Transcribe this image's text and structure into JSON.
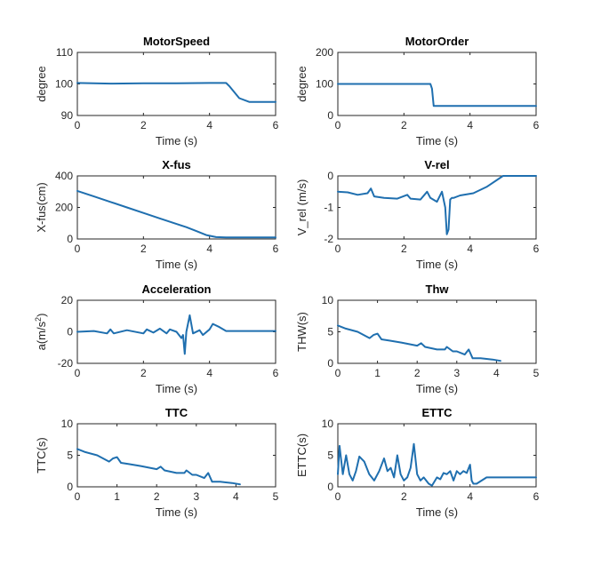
{
  "chart_data": [
    {
      "type": "line",
      "title": "MotorSpeed",
      "xlabel": "Time (s)",
      "ylabel": "degree",
      "xlim": [
        0,
        6
      ],
      "ylim": [
        90,
        110
      ],
      "xticks": [
        "0",
        "2",
        "4",
        "6"
      ],
      "yticks": [
        "90",
        "100",
        "110"
      ],
      "color": "#1f6faf",
      "series": [
        {
          "x": [
            0,
            0.5,
            1,
            2,
            3,
            4,
            4.5,
            4.6,
            4.9,
            5.2,
            6
          ],
          "y": [
            100.3,
            100.2,
            100.1,
            100.2,
            100.2,
            100.3,
            100.3,
            99.3,
            95.5,
            94.3,
            94.3
          ]
        }
      ]
    },
    {
      "type": "line",
      "title": "MotorOrder",
      "xlabel": "Time (s)",
      "ylabel": "degree",
      "xlim": [
        0,
        6
      ],
      "ylim": [
        0,
        200
      ],
      "xticks": [
        "0",
        "2",
        "4",
        "6"
      ],
      "yticks": [
        "0",
        "100",
        "200"
      ],
      "color": "#1f6faf",
      "series": [
        {
          "x": [
            0,
            1,
            2,
            2.8,
            2.85,
            2.9,
            4,
            5,
            6
          ],
          "y": [
            100,
            100,
            100,
            100,
            85,
            30,
            30,
            30,
            30
          ]
        }
      ]
    },
    {
      "type": "line",
      "title": "X-fus",
      "xlabel": "Time (s)",
      "ylabel": "X-fus(cm)",
      "xlim": [
        0,
        6
      ],
      "ylim": [
        0,
        400
      ],
      "xticks": [
        "0",
        "2",
        "4",
        "6"
      ],
      "yticks": [
        "0",
        "200",
        "400"
      ],
      "color": "#1f6faf",
      "series": [
        {
          "x": [
            0,
            0.5,
            1,
            1.5,
            2,
            2.5,
            3,
            3.3,
            3.6,
            3.9,
            4.2,
            4.5,
            5,
            6
          ],
          "y": [
            305,
            270,
            235,
            200,
            165,
            130,
            95,
            75,
            50,
            25,
            12,
            10,
            10,
            10
          ]
        }
      ]
    },
    {
      "type": "line",
      "title": "V-rel",
      "xlabel": "Time (s)",
      "ylabel": "V_rel (m/s)",
      "xlim": [
        0,
        6
      ],
      "ylim": [
        -2,
        0
      ],
      "xticks": [
        "0",
        "2",
        "4",
        "6"
      ],
      "yticks": [
        "-2",
        "-1",
        "0"
      ],
      "color": "#1f6faf",
      "series": [
        {
          "x": [
            0,
            0.3,
            0.6,
            0.9,
            1.0,
            1.1,
            1.4,
            1.8,
            2.1,
            2.2,
            2.5,
            2.7,
            2.8,
            3.0,
            3.15,
            3.25,
            3.3,
            3.35,
            3.4,
            3.45,
            3.5,
            3.7,
            4.1,
            4.5,
            5,
            6
          ],
          "y": [
            -0.5,
            -0.52,
            -0.6,
            -0.55,
            -0.4,
            -0.65,
            -0.7,
            -0.72,
            -0.6,
            -0.72,
            -0.75,
            -0.5,
            -0.7,
            -0.82,
            -0.5,
            -1.0,
            -1.85,
            -1.7,
            -0.75,
            -0.7,
            -0.7,
            -0.62,
            -0.55,
            -0.35,
            0,
            0
          ]
        }
      ]
    },
    {
      "type": "line",
      "title": "Acceleration",
      "xlabel": "Time (s)",
      "ylabel": "a(m/s",
      "ylabel_sup": "2",
      "ylabel_end": ")",
      "xlim": [
        0,
        6
      ],
      "ylim": [
        -20,
        20
      ],
      "xticks": [
        "0",
        "2",
        "4",
        "6"
      ],
      "yticks": [
        "-20",
        "0",
        "20"
      ],
      "color": "#1f6faf",
      "series": [
        {
          "x": [
            0,
            0.5,
            0.9,
            1.0,
            1.1,
            1.5,
            2.0,
            2.1,
            2.3,
            2.5,
            2.7,
            2.8,
            3.0,
            3.15,
            3.2,
            3.25,
            3.3,
            3.4,
            3.5,
            3.7,
            3.8,
            4.0,
            4.1,
            4.3,
            4.5,
            5,
            6
          ],
          "y": [
            0,
            0.5,
            -1,
            1.5,
            -1,
            1,
            -1,
            1.5,
            -0.5,
            2,
            -1,
            1.5,
            0,
            -4,
            -2,
            -14,
            0,
            10.5,
            -1,
            1,
            -2,
            1.5,
            5,
            3,
            0.5,
            0.5,
            0.5
          ]
        }
      ]
    },
    {
      "type": "line",
      "title": "Thw",
      "xlabel": "Time (s)",
      "ylabel": "THW(s)",
      "xlim": [
        0,
        5
      ],
      "ylim": [
        0,
        10
      ],
      "xticks": [
        "0",
        "1",
        "2",
        "3",
        "4",
        "5"
      ],
      "yticks": [
        "0",
        "5",
        "10"
      ],
      "color": "#1f6faf",
      "series": [
        {
          "x": [
            0,
            0.2,
            0.5,
            0.8,
            0.9,
            1.0,
            1.1,
            1.3,
            1.6,
            2.0,
            2.1,
            2.2,
            2.5,
            2.7,
            2.75,
            2.9,
            3.0,
            3.2,
            3.3,
            3.4,
            3.6,
            3.9,
            4.1
          ],
          "y": [
            6,
            5.5,
            5,
            4,
            4.5,
            4.7,
            3.8,
            3.6,
            3.3,
            2.8,
            3.2,
            2.6,
            2.2,
            2.2,
            2.6,
            1.9,
            1.9,
            1.4,
            2.2,
            0.8,
            0.8,
            0.6,
            0.4
          ]
        }
      ]
    },
    {
      "type": "line",
      "title": "TTC",
      "xlabel": "Time (s)",
      "ylabel": "TTC(s)",
      "xlim": [
        0,
        5
      ],
      "ylim": [
        0,
        10
      ],
      "xticks": [
        "0",
        "1",
        "2",
        "3",
        "4",
        "5"
      ],
      "yticks": [
        "0",
        "5",
        "10"
      ],
      "color": "#1f6faf",
      "series": [
        {
          "x": [
            0,
            0.2,
            0.5,
            0.8,
            0.9,
            1.0,
            1.1,
            1.3,
            1.6,
            2.0,
            2.1,
            2.2,
            2.5,
            2.7,
            2.75,
            2.9,
            3.0,
            3.2,
            3.3,
            3.4,
            3.6,
            3.9,
            4.1
          ],
          "y": [
            6,
            5.5,
            5,
            4,
            4.5,
            4.7,
            3.8,
            3.6,
            3.3,
            2.8,
            3.2,
            2.6,
            2.2,
            2.2,
            2.6,
            1.9,
            1.9,
            1.4,
            2.2,
            0.8,
            0.8,
            0.6,
            0.4
          ]
        }
      ]
    },
    {
      "type": "line",
      "title": "ETTC",
      "xlabel": "Time (s)",
      "ylabel": "ETTC(s)",
      "xlim": [
        0,
        6
      ],
      "ylim": [
        0,
        10
      ],
      "xticks": [
        "0",
        "2",
        "4",
        "6"
      ],
      "yticks": [
        "0",
        "5",
        "10"
      ],
      "color": "#1f6faf",
      "series": [
        {
          "x": [
            0,
            0.05,
            0.15,
            0.25,
            0.35,
            0.45,
            0.55,
            0.65,
            0.8,
            0.95,
            1.1,
            1.25,
            1.4,
            1.5,
            1.6,
            1.7,
            1.8,
            1.9,
            2.0,
            2.1,
            2.2,
            2.3,
            2.4,
            2.5,
            2.6,
            2.75,
            2.85,
            3.0,
            3.1,
            3.2,
            3.3,
            3.4,
            3.5,
            3.6,
            3.7,
            3.8,
            3.9,
            4.0,
            4.05,
            4.1,
            4.2,
            4.5,
            5,
            6
          ],
          "y": [
            2,
            6.5,
            2,
            5,
            2,
            1,
            2.5,
            4.8,
            4,
            2,
            1,
            2.5,
            4.5,
            2.5,
            3,
            1.5,
            5,
            2,
            1,
            1.5,
            3,
            6.8,
            2,
            1,
            1.5,
            0.5,
            0.2,
            1.5,
            1.2,
            2.2,
            2,
            2.5,
            1,
            2.5,
            2,
            2.5,
            2.2,
            3.5,
            1,
            0.5,
            0.5,
            1.5,
            1.5,
            1.5
          ]
        }
      ]
    }
  ]
}
